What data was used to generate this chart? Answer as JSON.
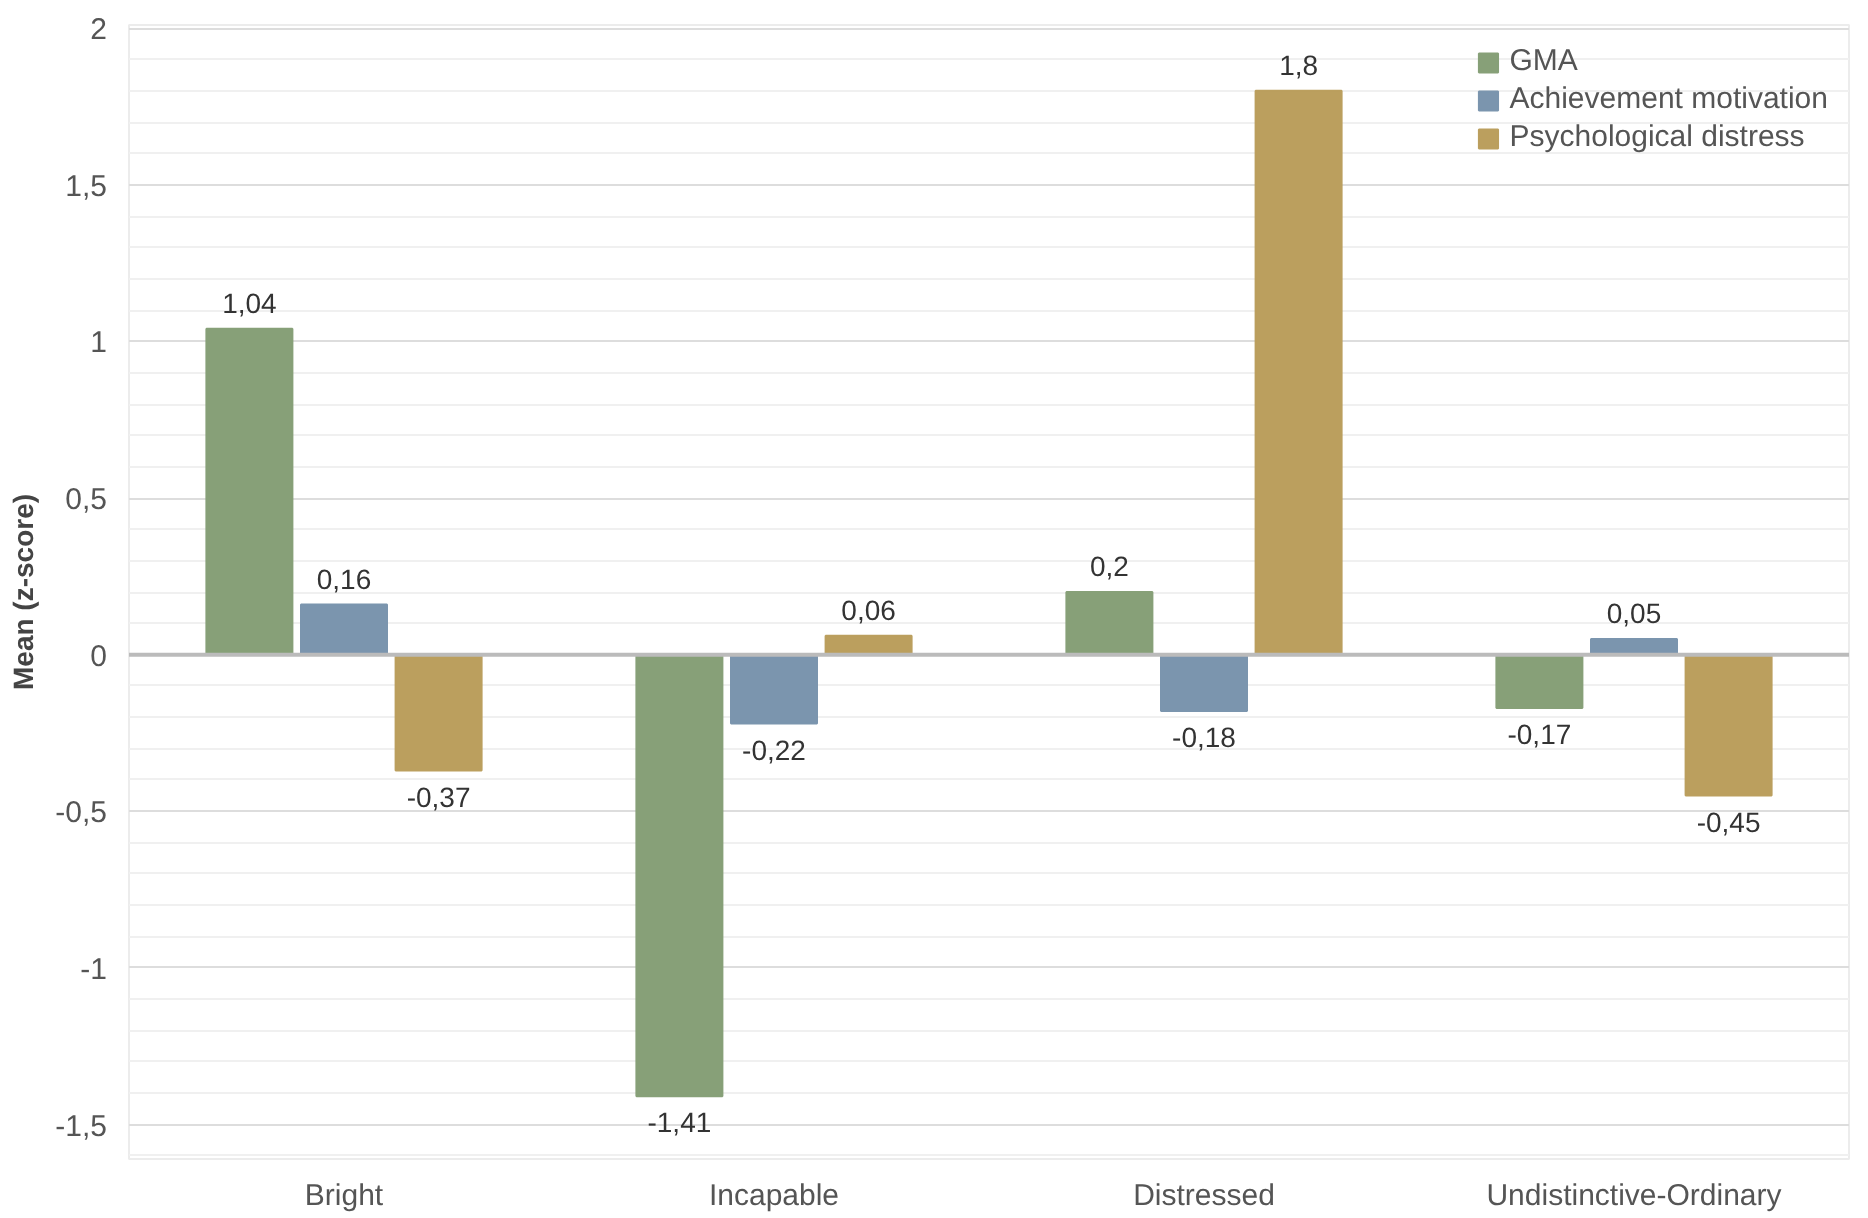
{
  "chart_data": {
    "type": "bar",
    "ylabel": "Mean (z-score)",
    "categories": [
      "Bright",
      "Incapable",
      "Distressed",
      "Undistinctive-Ordinary"
    ],
    "series": [
      {
        "name": "GMA",
        "color": "#87a078",
        "values": [
          1.04,
          -1.41,
          0.2,
          -0.17
        ],
        "value_labels": [
          "1,04",
          "-1,41",
          "0,2",
          "-0,17"
        ]
      },
      {
        "name": "Achievement motivation",
        "color": "#7b95ae",
        "values": [
          0.16,
          -0.22,
          -0.18,
          0.05
        ],
        "value_labels": [
          "0,16",
          "-0,22",
          "-0,18",
          "0,05"
        ]
      },
      {
        "name": "Psychological distress",
        "color": "#bb9f5e",
        "values": [
          -0.37,
          0.06,
          1.8,
          -0.45
        ],
        "value_labels": [
          "-0,37",
          "0,06",
          "1,8",
          "-0,45"
        ]
      }
    ],
    "ylim": [
      -1.61,
      2.01
    ],
    "yticks": [
      {
        "value": -1.6,
        "label": null
      },
      {
        "value": -1.5,
        "label": "-1,5"
      },
      {
        "value": -1.4,
        "label": null
      },
      {
        "value": -1.3,
        "label": null
      },
      {
        "value": -1.2,
        "label": null
      },
      {
        "value": -1.1,
        "label": null
      },
      -1,
      {
        "value": -0.9,
        "label": null
      },
      {
        "value": -0.8,
        "label": null
      },
      {
        "value": -0.7,
        "label": null
      },
      {
        "value": -0.6,
        "label": null
      },
      {
        "value": -0.5,
        "label": "-0,5"
      },
      {
        "value": -0.4,
        "label": null
      },
      {
        "value": -0.3,
        "label": null
      },
      {
        "value": -0.2,
        "label": null
      },
      {
        "value": -0.1,
        "label": null
      },
      0,
      {
        "value": 0.1,
        "label": null
      },
      {
        "value": 0.2,
        "label": null
      },
      {
        "value": 0.3,
        "label": null
      },
      {
        "value": 0.4,
        "label": null
      },
      {
        "value": 0.5,
        "label": "0,5"
      },
      {
        "value": 0.6,
        "label": null
      },
      {
        "value": 0.7,
        "label": null
      },
      {
        "value": 0.8,
        "label": null
      },
      {
        "value": 0.9,
        "label": null
      },
      1,
      {
        "value": 1.1,
        "label": null
      },
      {
        "value": 1.2,
        "label": null
      },
      {
        "value": 1.3,
        "label": null
      },
      {
        "value": 1.4,
        "label": null
      },
      {
        "value": 1.5,
        "label": "1,5"
      },
      {
        "value": 1.6,
        "label": null
      },
      {
        "value": 1.7,
        "label": null
      },
      {
        "value": 1.8,
        "label": null
      },
      {
        "value": 1.9,
        "label": null
      },
      2
    ],
    "grid": "y",
    "legend": "top right"
  }
}
